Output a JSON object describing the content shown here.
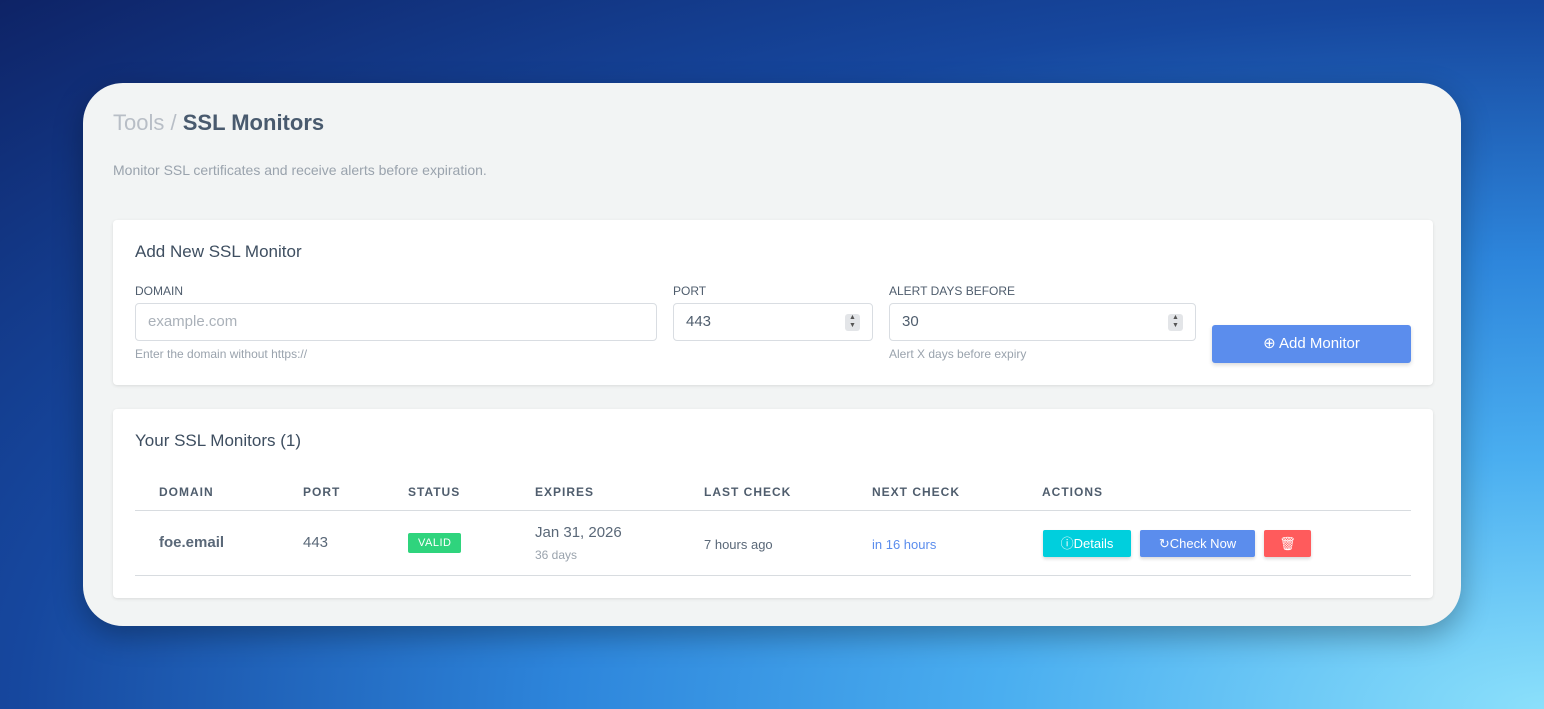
{
  "breadcrumb": {
    "parent": "Tools",
    "separator": "/",
    "current": "SSL Monitors"
  },
  "subtitle": "Monitor SSL certificates and receive alerts before expiration.",
  "add_form": {
    "title": "Add New SSL Monitor",
    "domain": {
      "label": "DOMAIN",
      "placeholder": "example.com",
      "help": "Enter the domain without https://"
    },
    "port": {
      "label": "PORT",
      "value": "443"
    },
    "alert": {
      "label": "ALERT DAYS BEFORE",
      "value": "30",
      "help": "Alert X days before expiry"
    },
    "submit": "Add Monitor"
  },
  "monitors": {
    "title": "Your SSL Monitors (1)",
    "columns": [
      "DOMAIN",
      "PORT",
      "STATUS",
      "EXPIRES",
      "LAST CHECK",
      "NEXT CHECK",
      "ACTIONS"
    ],
    "rows": [
      {
        "domain": "foe.email",
        "port": "443",
        "status": "VALID",
        "expires": "Jan 31, 2026",
        "expires_in": "36 days",
        "last_check": "7 hours ago",
        "next_check": "in 16 hours",
        "details": "Details",
        "check_now": "Check Now"
      }
    ]
  },
  "colors": {
    "primary": "#5b8ded",
    "info": "#00cfdd",
    "danger": "#ff5b5c",
    "success": "#2fd47d"
  }
}
